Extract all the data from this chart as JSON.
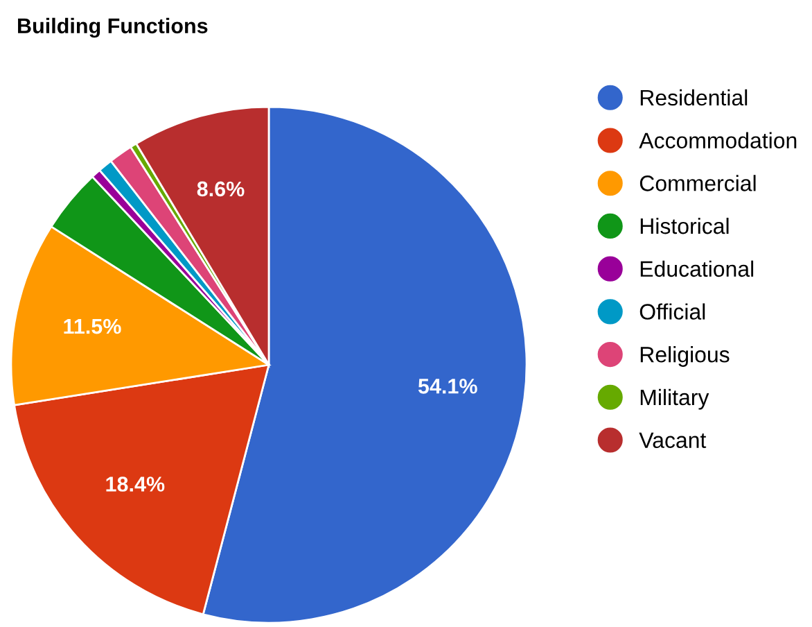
{
  "chart_data": {
    "type": "pie",
    "title": "Building Functions",
    "categories": [
      "Residential",
      "Accommodation",
      "Commercial",
      "Historical",
      "Educational",
      "Official",
      "Religious",
      "Military",
      "Vacant"
    ],
    "values": [
      54.1,
      18.4,
      11.5,
      4.0,
      0.6,
      0.9,
      1.5,
      0.4,
      8.6
    ],
    "colors": [
      "#3366cc",
      "#dc3912",
      "#ff9900",
      "#109618",
      "#990099",
      "#0099c6",
      "#dd4477",
      "#66aa00",
      "#b82e2e"
    ],
    "value_labels": [
      "54.1%",
      "18.4%",
      "11.5%",
      null,
      null,
      null,
      null,
      null,
      "8.6%"
    ],
    "legend": "right"
  }
}
